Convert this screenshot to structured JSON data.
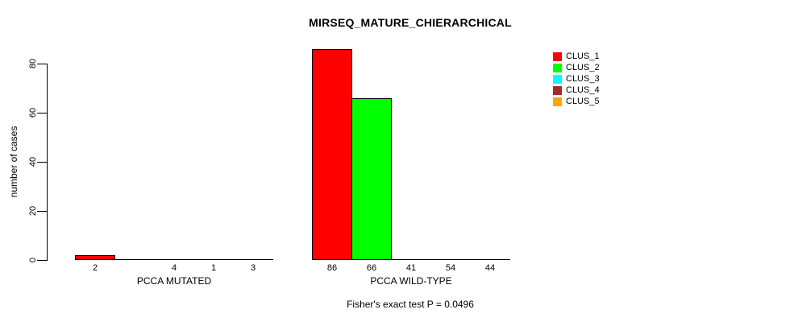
{
  "chart_data": {
    "type": "bar",
    "title": "MIRSEQ_MATURE_CHIERARCHICAL",
    "ylabel": "number of cases",
    "xlabel": "",
    "ylim": [
      0,
      80
    ],
    "yticks": [
      0,
      20,
      40,
      60,
      80
    ],
    "grid": false,
    "legend_position": "top-right",
    "categories": [
      "PCCA MUTATED",
      "PCCA WILD-TYPE"
    ],
    "series": [
      {
        "name": "CLUS_1",
        "color": "#ff0000",
        "values": [
          2,
          86
        ]
      },
      {
        "name": "CLUS_2",
        "color": "#00ff00",
        "values": [
          0,
          66
        ]
      },
      {
        "name": "CLUS_3",
        "color": "#00ffff",
        "values": [
          4,
          41
        ]
      },
      {
        "name": "CLUS_4",
        "color": "#a52a2a",
        "values": [
          1,
          54
        ]
      },
      {
        "name": "CLUS_5",
        "color": "#ffa500",
        "values": [
          3,
          44
        ]
      }
    ],
    "bar_labels": [
      [
        "2",
        "",
        "4",
        "1",
        "3"
      ],
      [
        "86",
        "66",
        "41",
        "54",
        "44"
      ]
    ],
    "annotation": "Fisher's exact test P = 0.0496"
  }
}
